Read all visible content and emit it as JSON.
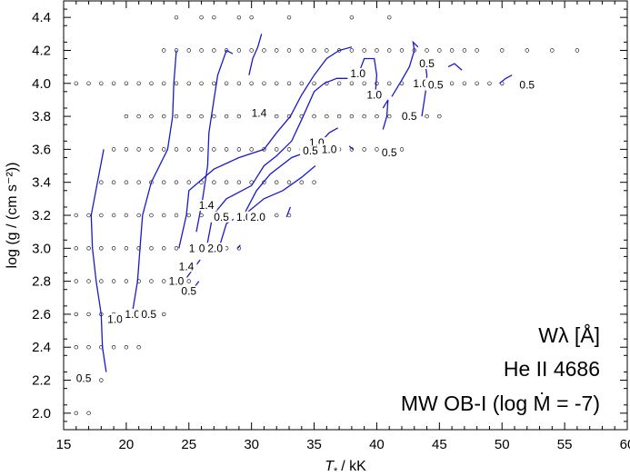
{
  "chart_data": {
    "type": "scatter",
    "title": "",
    "xlabel_symbol": "T",
    "xlabel_sub": "*",
    "xlabel_unit": "/ kK",
    "ylabel": "log (g / (cm s⁻²))",
    "xlim": [
      15,
      60
    ],
    "ylim": [
      1.9,
      4.5
    ],
    "xticks": [
      "15",
      "20",
      "25",
      "30",
      "35",
      "40",
      "45",
      "50",
      "55",
      "60"
    ],
    "yticks": [
      "2.0",
      "2.2",
      "2.4",
      "2.6",
      "2.8",
      "3.0",
      "3.2",
      "3.4",
      "3.6",
      "3.8",
      "4.0",
      "4.2",
      "4.4"
    ],
    "grid": false,
    "annotations": {
      "quantity": "Wλ [Å]",
      "line": "He II 4686",
      "grid_name": "MW OB-I (log Ṁ = -7)"
    },
    "model_grid_points": [
      {
        "logg": 2.0,
        "teff": [
          16,
          17
        ]
      },
      {
        "logg": 2.2,
        "teff": [
          16,
          17,
          18
        ]
      },
      {
        "logg": 2.4,
        "teff": [
          16,
          17,
          18,
          19,
          20,
          21
        ]
      },
      {
        "logg": 2.6,
        "teff": [
          16,
          17,
          18,
          19,
          20,
          21,
          22,
          23
        ]
      },
      {
        "logg": 2.8,
        "teff": [
          16,
          17,
          18,
          19,
          20,
          21,
          22,
          23,
          24,
          25
        ]
      },
      {
        "logg": 3.0,
        "teff": [
          16,
          17,
          18,
          19,
          20,
          21,
          22,
          23,
          24,
          25,
          26,
          27,
          28,
          29
        ]
      },
      {
        "logg": 3.2,
        "teff": [
          16,
          17,
          18,
          19,
          20,
          21,
          22,
          23,
          24,
          25,
          26,
          27,
          28,
          29,
          30,
          31,
          32,
          33
        ]
      },
      {
        "logg": 3.4,
        "teff": [
          18,
          19,
          20,
          21,
          22,
          23,
          24,
          25,
          26,
          27,
          28,
          29,
          30,
          31,
          32,
          33,
          34,
          35
        ]
      },
      {
        "logg": 3.6,
        "teff": [
          19,
          20,
          21,
          22,
          23,
          24,
          25,
          26,
          27,
          28,
          29,
          30,
          31,
          32,
          33,
          34,
          35,
          36,
          37,
          38,
          39,
          40,
          41,
          42
        ]
      },
      {
        "logg": 3.8,
        "teff": [
          20,
          21,
          22,
          23,
          24,
          25,
          26,
          27,
          28,
          29,
          30,
          31,
          32,
          33,
          34,
          35,
          36,
          37,
          38,
          39,
          40,
          41,
          42,
          43,
          44,
          45
        ]
      },
      {
        "logg": 4.0,
        "teff": [
          16,
          17,
          18,
          19,
          20,
          21,
          22,
          23,
          24,
          25,
          26,
          27,
          28,
          29,
          30,
          31,
          32,
          33,
          34,
          35,
          36,
          37,
          38,
          39,
          40,
          41,
          42,
          43,
          44,
          45,
          46,
          47,
          48,
          49,
          50
        ]
      },
      {
        "logg": 4.2,
        "teff": [
          23,
          24,
          25,
          26,
          27,
          28,
          29,
          30,
          31,
          32,
          33,
          34,
          35,
          36,
          37,
          38,
          39,
          40,
          41,
          42,
          43,
          44,
          45,
          46,
          47,
          48,
          50,
          52,
          54,
          56
        ]
      },
      {
        "logg": 4.4,
        "teff": [
          24,
          26,
          27,
          29,
          30,
          33,
          38,
          41
        ]
      }
    ],
    "contours": [
      {
        "points": [
          [
            18.4,
            2.25
          ],
          [
            18.1,
            2.4
          ],
          [
            18.0,
            2.6
          ],
          [
            17.6,
            2.8
          ],
          [
            17.3,
            3.0
          ],
          [
            17.2,
            3.2
          ],
          [
            17.7,
            3.4
          ],
          [
            18.2,
            3.6
          ]
        ]
      },
      {
        "points": [
          [
            20.4,
            2.57
          ],
          [
            20.9,
            2.8
          ],
          [
            21.1,
            3.0
          ],
          [
            21.3,
            3.2
          ],
          [
            22.0,
            3.4
          ],
          [
            23.3,
            3.6
          ],
          [
            23.7,
            3.8
          ],
          [
            23.8,
            4.0
          ],
          [
            24.0,
            4.2
          ]
        ]
      },
      {
        "points": [
          [
            25.6,
            3.1
          ],
          [
            26.1,
            3.3
          ],
          [
            26.5,
            3.5
          ],
          [
            26.6,
            3.7
          ],
          [
            27.0,
            3.9
          ],
          [
            27.3,
            4.05
          ],
          [
            28.0,
            4.2
          ],
          [
            28.5,
            4.18
          ]
        ]
      },
      {
        "points": [
          [
            29.8,
            4.05
          ],
          [
            30.1,
            4.15
          ],
          [
            30.5,
            4.22
          ],
          [
            30.8,
            4.3
          ]
        ]
      },
      {
        "points": [
          [
            24.2,
            3.0
          ],
          [
            24.8,
            3.2
          ],
          [
            25.0,
            3.35
          ],
          [
            27.0,
            3.48
          ],
          [
            29.0,
            3.55
          ],
          [
            31.0,
            3.6
          ],
          [
            32.0,
            3.7
          ],
          [
            33.1,
            3.8
          ],
          [
            34.0,
            3.93
          ],
          [
            35.0,
            4.05
          ],
          [
            36.0,
            4.15
          ],
          [
            37.0,
            4.2
          ],
          [
            38.0,
            4.22
          ]
        ]
      },
      {
        "points": [
          [
            26.4,
            3.0
          ],
          [
            26.9,
            3.2
          ],
          [
            28.0,
            3.3
          ],
          [
            30.0,
            3.38
          ],
          [
            31.0,
            3.5
          ],
          [
            32.0,
            3.56
          ],
          [
            33.2,
            3.65
          ],
          [
            34.0,
            3.78
          ],
          [
            35.0,
            3.95
          ],
          [
            35.8,
            4.0
          ],
          [
            36.8,
            4.03
          ],
          [
            37.7,
            4.03
          ],
          [
            38.5,
            4.05
          ],
          [
            39.0,
            4.15
          ],
          [
            39.8,
            4.15
          ],
          [
            40.0,
            4.05
          ],
          [
            39.9,
            3.95
          ]
        ]
      },
      {
        "points": [
          [
            27.4,
            3.0
          ],
          [
            28.0,
            3.15
          ],
          [
            29.5,
            3.22
          ],
          [
            30.4,
            3.35
          ],
          [
            31.5,
            3.45
          ],
          [
            33.2,
            3.55
          ],
          [
            35.0,
            3.6
          ],
          [
            35.6,
            3.65
          ],
          [
            36.2,
            3.7
          ],
          [
            36.9,
            3.73
          ]
        ]
      },
      {
        "points": [
          [
            29.7,
            3.22
          ],
          [
            31.0,
            3.3
          ],
          [
            32.5,
            3.35
          ],
          [
            34.0,
            3.43
          ],
          [
            35.1,
            3.5
          ]
        ]
      },
      {
        "points": [
          [
            37.8,
            3.62
          ],
          [
            38.1,
            3.6
          ]
        ]
      },
      {
        "points": [
          [
            40.5,
            3.72
          ],
          [
            40.8,
            3.8
          ],
          [
            40.9,
            3.9
          ],
          [
            40.5,
            3.85
          ]
        ]
      },
      {
        "points": [
          [
            41.2,
            3.92
          ],
          [
            42.0,
            4.02
          ],
          [
            42.6,
            4.1
          ],
          [
            43.0,
            4.2
          ],
          [
            42.9,
            4.25
          ],
          [
            43.3,
            4.22
          ]
        ]
      },
      {
        "points": [
          [
            43.6,
            3.8
          ],
          [
            43.9,
            3.95
          ],
          [
            44.0,
            4.05
          ],
          [
            43.8,
            4.15
          ]
        ]
      },
      {
        "points": [
          [
            45.7,
            4.1
          ],
          [
            46.2,
            4.12
          ],
          [
            46.8,
            4.08
          ]
        ]
      },
      {
        "points": [
          [
            49.8,
            4.0
          ],
          [
            50.3,
            4.03
          ],
          [
            50.8,
            4.05
          ]
        ]
      },
      {
        "points": [
          [
            24.8,
            2.82
          ],
          [
            25.4,
            2.88
          ],
          [
            25.9,
            2.93
          ]
        ]
      },
      {
        "points": [
          [
            25.3,
            2.75
          ],
          [
            25.8,
            2.8
          ]
        ]
      },
      {
        "points": [
          [
            28.9,
            3.0
          ],
          [
            29.1,
            3.02
          ]
        ]
      },
      {
        "points": [
          [
            32.8,
            3.19
          ],
          [
            33.1,
            3.25
          ]
        ]
      },
      {
        "points": [
          [
            25.6,
            3.23
          ],
          [
            25.8,
            3.28
          ]
        ]
      }
    ],
    "contour_labels": [
      {
        "text": "0.5",
        "x": 16.6,
        "y": 2.21
      },
      {
        "text": "1.0",
        "x": 19.1,
        "y": 2.57
      },
      {
        "text": "1.0",
        "x": 20.5,
        "y": 2.6
      },
      {
        "text": "0.5",
        "x": 21.8,
        "y": 2.6
      },
      {
        "text": "1.0",
        "x": 24.0,
        "y": 2.8
      },
      {
        "text": "1.4",
        "x": 24.8,
        "y": 2.89
      },
      {
        "text": "0.5",
        "x": 25.0,
        "y": 2.74
      },
      {
        "text": "1.0",
        "x": 25.6,
        "y": 3.0
      },
      {
        "text": "0.5",
        "x": 26.4,
        "y": 3.0
      },
      {
        "text": "2.0",
        "x": 27.1,
        "y": 3.0
      },
      {
        "text": "1.4",
        "x": 26.4,
        "y": 3.26
      },
      {
        "text": "0.5",
        "x": 27.6,
        "y": 3.19
      },
      {
        "text": "1.0",
        "x": 29.4,
        "y": 3.19
      },
      {
        "text": "2.0",
        "x": 30.5,
        "y": 3.19
      },
      {
        "text": "1.4",
        "x": 30.6,
        "y": 3.82
      },
      {
        "text": "1.0",
        "x": 35.2,
        "y": 3.64
      },
      {
        "text": "0.5",
        "x": 34.7,
        "y": 3.59
      },
      {
        "text": "1.0",
        "x": 36.2,
        "y": 3.6
      },
      {
        "text": "1.0",
        "x": 38.5,
        "y": 4.06
      },
      {
        "text": "1.0",
        "x": 39.8,
        "y": 3.93
      },
      {
        "text": "0.5",
        "x": 41.0,
        "y": 3.58
      },
      {
        "text": "0.5",
        "x": 44.0,
        "y": 4.12
      },
      {
        "text": "1.0",
        "x": 43.5,
        "y": 4.0
      },
      {
        "text": "0.5",
        "x": 44.7,
        "y": 3.99
      },
      {
        "text": "0.5",
        "x": 42.6,
        "y": 3.8
      },
      {
        "text": "0.5",
        "x": 52.0,
        "y": 3.99
      }
    ]
  }
}
